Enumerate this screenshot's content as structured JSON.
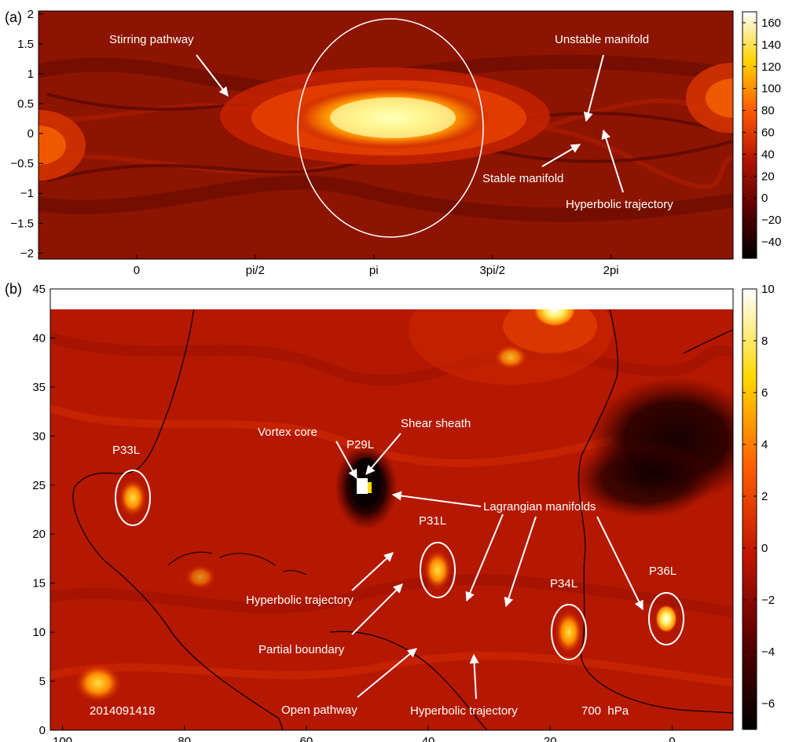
{
  "chart_data": [
    {
      "panel": "(a)",
      "type": "heatmap",
      "x_ticks": [
        {
          "value": 0,
          "label": "0"
        },
        {
          "value": 1.5708,
          "label": "pi/2"
        },
        {
          "value": 3.1416,
          "label": "pi"
        },
        {
          "value": 4.7124,
          "label": "3pi/2"
        },
        {
          "value": 6.2832,
          "label": "2pi"
        }
      ],
      "y_ticks": [
        {
          "value": 2,
          "label": "2"
        },
        {
          "value": 1.5,
          "label": "1.5"
        },
        {
          "value": 1,
          "label": "1"
        },
        {
          "value": 0.5,
          "label": "0.5"
        },
        {
          "value": 0,
          "label": "0"
        },
        {
          "value": -0.5,
          "label": "−0.5"
        },
        {
          "value": -1,
          "label": "−1"
        },
        {
          "value": -1.5,
          "label": "−1.5"
        },
        {
          "value": -2,
          "label": "−2"
        }
      ],
      "xlim": [
        -1.3,
        7.9
      ],
      "ylim": [
        -2.1,
        2.05
      ],
      "colorbar": {
        "range": [
          -55,
          170
        ],
        "ticks": [
          {
            "value": 160,
            "label": "160"
          },
          {
            "value": 140,
            "label": "140"
          },
          {
            "value": 120,
            "label": "120"
          },
          {
            "value": 100,
            "label": "100"
          },
          {
            "value": 80,
            "label": "80"
          },
          {
            "value": 60,
            "label": "60"
          },
          {
            "value": 40,
            "label": "40"
          },
          {
            "value": 20,
            "label": "20"
          },
          {
            "value": 0,
            "label": "0"
          },
          {
            "value": -20,
            "label": "−20"
          },
          {
            "value": -40,
            "label": "−40"
          }
        ]
      },
      "annotations": [
        {
          "text": "Stirring pathway",
          "target": [
            1.3,
            0.6
          ]
        },
        {
          "text": "Unstable manifold",
          "target": [
            5.7,
            0.2
          ]
        },
        {
          "text": "Stable manifold",
          "target": [
            5.55,
            -0.15
          ]
        },
        {
          "text": "Hyperbolic trajectory",
          "target": [
            5.9,
            0.05
          ]
        }
      ]
    },
    {
      "panel": "(b)",
      "type": "heatmap",
      "x_ticks": [
        {
          "value": 100,
          "label": "100"
        },
        {
          "value": 80,
          "label": "80"
        },
        {
          "value": 60,
          "label": "60"
        },
        {
          "value": 40,
          "label": "40"
        },
        {
          "value": 20,
          "label": "20"
        },
        {
          "value": 0,
          "label": "0"
        }
      ],
      "y_ticks": [
        {
          "value": 45,
          "label": "45"
        },
        {
          "value": 40,
          "label": "40"
        },
        {
          "value": 35,
          "label": "35"
        },
        {
          "value": 30,
          "label": "30"
        },
        {
          "value": 25,
          "label": "25"
        },
        {
          "value": 20,
          "label": "20"
        },
        {
          "value": 15,
          "label": "15"
        },
        {
          "value": 10,
          "label": "10"
        },
        {
          "value": 5,
          "label": "5"
        },
        {
          "value": 0,
          "label": "0"
        }
      ],
      "xlim": [
        102,
        -10
      ],
      "ylim": [
        0,
        45
      ],
      "colorbar": {
        "range": [
          -7,
          10
        ],
        "ticks": [
          {
            "value": 10,
            "label": "10"
          },
          {
            "value": 8,
            "label": "8"
          },
          {
            "value": 6,
            "label": "6"
          },
          {
            "value": 4,
            "label": "4"
          },
          {
            "value": 2,
            "label": "2"
          },
          {
            "value": 0,
            "label": "0"
          },
          {
            "value": -2,
            "label": "−2"
          },
          {
            "value": -4,
            "label": "−4"
          },
          {
            "value": -6,
            "label": "−6"
          }
        ]
      },
      "features": [
        {
          "label": "P33L",
          "x": 89.8,
          "y": 24.5
        },
        {
          "label": "P29L",
          "x": 51.8,
          "y": 25.5
        },
        {
          "label": "P31L",
          "x": 39.5,
          "y": 16.5
        },
        {
          "label": "P34L",
          "x": 17.3,
          "y": 10.3
        },
        {
          "label": "P36L",
          "x": 0.5,
          "y": 11.5
        }
      ],
      "annotations": [
        {
          "text": "Vortex core",
          "target": [
            51.8,
            26.2
          ]
        },
        {
          "text": "Shear sheath",
          "target": [
            50.5,
            27.2
          ]
        },
        {
          "text": "Lagrangian manifolds",
          "target": [
            48.5,
            24.5
          ]
        },
        {
          "text": "Hyperbolic trajectory",
          "target": [
            46.0,
            19.5
          ]
        },
        {
          "text": "Partial boundary",
          "target": [
            44.0,
            14.8
          ]
        },
        {
          "text": "Open pathway",
          "target": [
            40.2,
            11.5
          ]
        },
        {
          "text": "Hyperbolic trajectory",
          "target": [
            33.8,
            10.5
          ]
        }
      ],
      "stamp": "2014091418",
      "level": "700  hPa"
    }
  ]
}
